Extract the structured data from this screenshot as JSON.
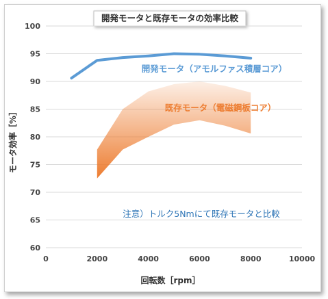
{
  "chart_data": {
    "type": "line",
    "title": "開発モータと既存モータの効率比較",
    "xlabel": "回転数［rpm］",
    "ylabel": "モータ効率［%］",
    "xlim": [
      0,
      10000
    ],
    "ylim": [
      60,
      100
    ],
    "xticks": [
      "0",
      "2000",
      "4000",
      "6000",
      "8000",
      "10000"
    ],
    "yticks": [
      "60",
      "65",
      "70",
      "75",
      "80",
      "85",
      "90",
      "95",
      "100"
    ],
    "grid": "horizontal",
    "series": [
      {
        "name": "開発モータ（アモルファス積層コア）",
        "kind": "line",
        "color": "#5b9bd5",
        "x": [
          1000,
          2000,
          3000,
          4000,
          5000,
          6000,
          7000,
          8000
        ],
        "y": [
          90.6,
          93.8,
          94.3,
          94.6,
          95.0,
          94.9,
          94.6,
          94.2
        ]
      },
      {
        "name": "既存モータ（電磁鋼板コア）",
        "kind": "band",
        "color": "#ed7d31",
        "x": [
          2000,
          3000,
          4000,
          5000,
          6000,
          7000,
          8000
        ],
        "upper": [
          77.7,
          85.0,
          88.2,
          89.5,
          90.0,
          89.2,
          88.0
        ],
        "lower": [
          72.5,
          77.7,
          80.0,
          82.2,
          83.0,
          82.0,
          80.6
        ]
      }
    ],
    "annotations": [
      {
        "text": "注意）トルク5Nmにて既存モータと比較",
        "color": "#2e75b6"
      }
    ]
  }
}
